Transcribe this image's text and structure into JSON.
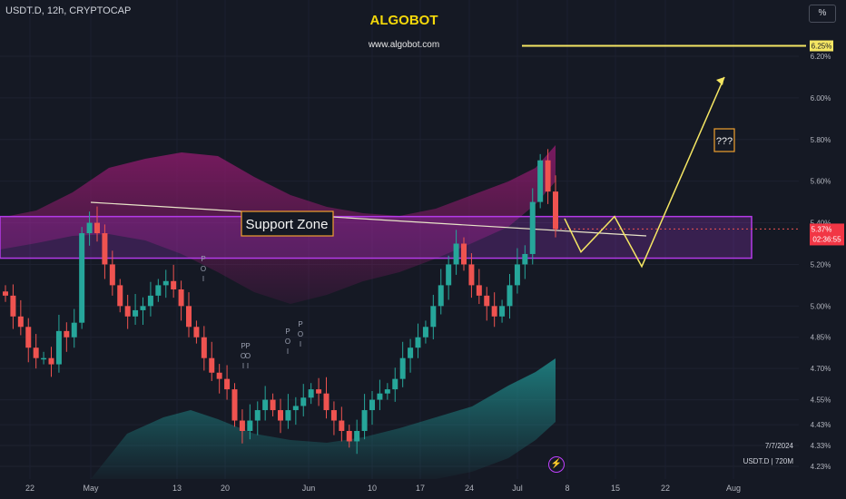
{
  "header": {
    "symbol_line": "USDT.D, 12h, CRYPTOCAP",
    "percent_button": "%"
  },
  "watermark": {
    "title": "ALGOBOT",
    "url": "www.algobot.com"
  },
  "corner": {
    "date": "7/7/2024",
    "info": "USDT.D | 720M"
  },
  "annotations": {
    "support_zone_label": "Support Zone",
    "question_label": "???",
    "poi_labels": [
      "POI",
      "POI",
      "POI",
      "POI",
      "POI"
    ]
  },
  "price_labels": {
    "target": "6.25%",
    "current": "5.37%",
    "countdown": "02:36:55"
  },
  "colors": {
    "background": "#151924",
    "up_candle": "#26a69a",
    "down_candle": "#ef5350",
    "support_zone": "#b43ae8",
    "projection_line": "#f5e663",
    "band": "#8a1a6a",
    "volume_cloud": "#1f8a8a",
    "label_box": "#f0a030"
  },
  "icons": {
    "alert": "lightning-bolt-icon"
  },
  "chart_data": {
    "type": "candlestick",
    "title": "USDT.D, 12h, CRYPTOCAP",
    "y_axis_labels": [
      "6.20%",
      "6.00%",
      "5.80%",
      "5.60%",
      "5.40%",
      "5.20%",
      "5.00%",
      "4.85%",
      "4.70%",
      "4.55%",
      "4.43%",
      "4.33%",
      "4.23%"
    ],
    "x_axis_labels": [
      "22",
      "May",
      "13",
      "20",
      "Jun",
      "10",
      "17",
      "24",
      "Jul",
      "8",
      "15",
      "22",
      "Aug"
    ],
    "last_price": 5.37,
    "support_zone": [
      5.23,
      5.43
    ],
    "target_level": 6.25,
    "projection_path": [
      5.42,
      5.26,
      5.43,
      5.19,
      6.1
    ],
    "closes": [
      5.05,
      4.95,
      4.9,
      4.8,
      4.75,
      4.75,
      4.72,
      4.88,
      4.85,
      4.92,
      5.35,
      5.4,
      5.35,
      5.2,
      5.1,
      5.0,
      4.95,
      4.98,
      5.0,
      5.05,
      5.1,
      5.12,
      5.08,
      5.0,
      4.9,
      4.85,
      4.75,
      4.68,
      4.65,
      4.6,
      4.45,
      4.4,
      4.45,
      4.5,
      4.55,
      4.5,
      4.45,
      4.5,
      4.52,
      4.56,
      4.6,
      4.58,
      4.5,
      4.45,
      4.4,
      4.35,
      4.4,
      4.5,
      4.55,
      4.58,
      4.6,
      4.65,
      4.75,
      4.8,
      4.85,
      4.9,
      5.0,
      5.1,
      5.2,
      5.3,
      5.2,
      5.1,
      5.05,
      5.0,
      4.95,
      5.0,
      5.1,
      5.2,
      5.25,
      5.5,
      5.7,
      5.55,
      5.37
    ]
  }
}
